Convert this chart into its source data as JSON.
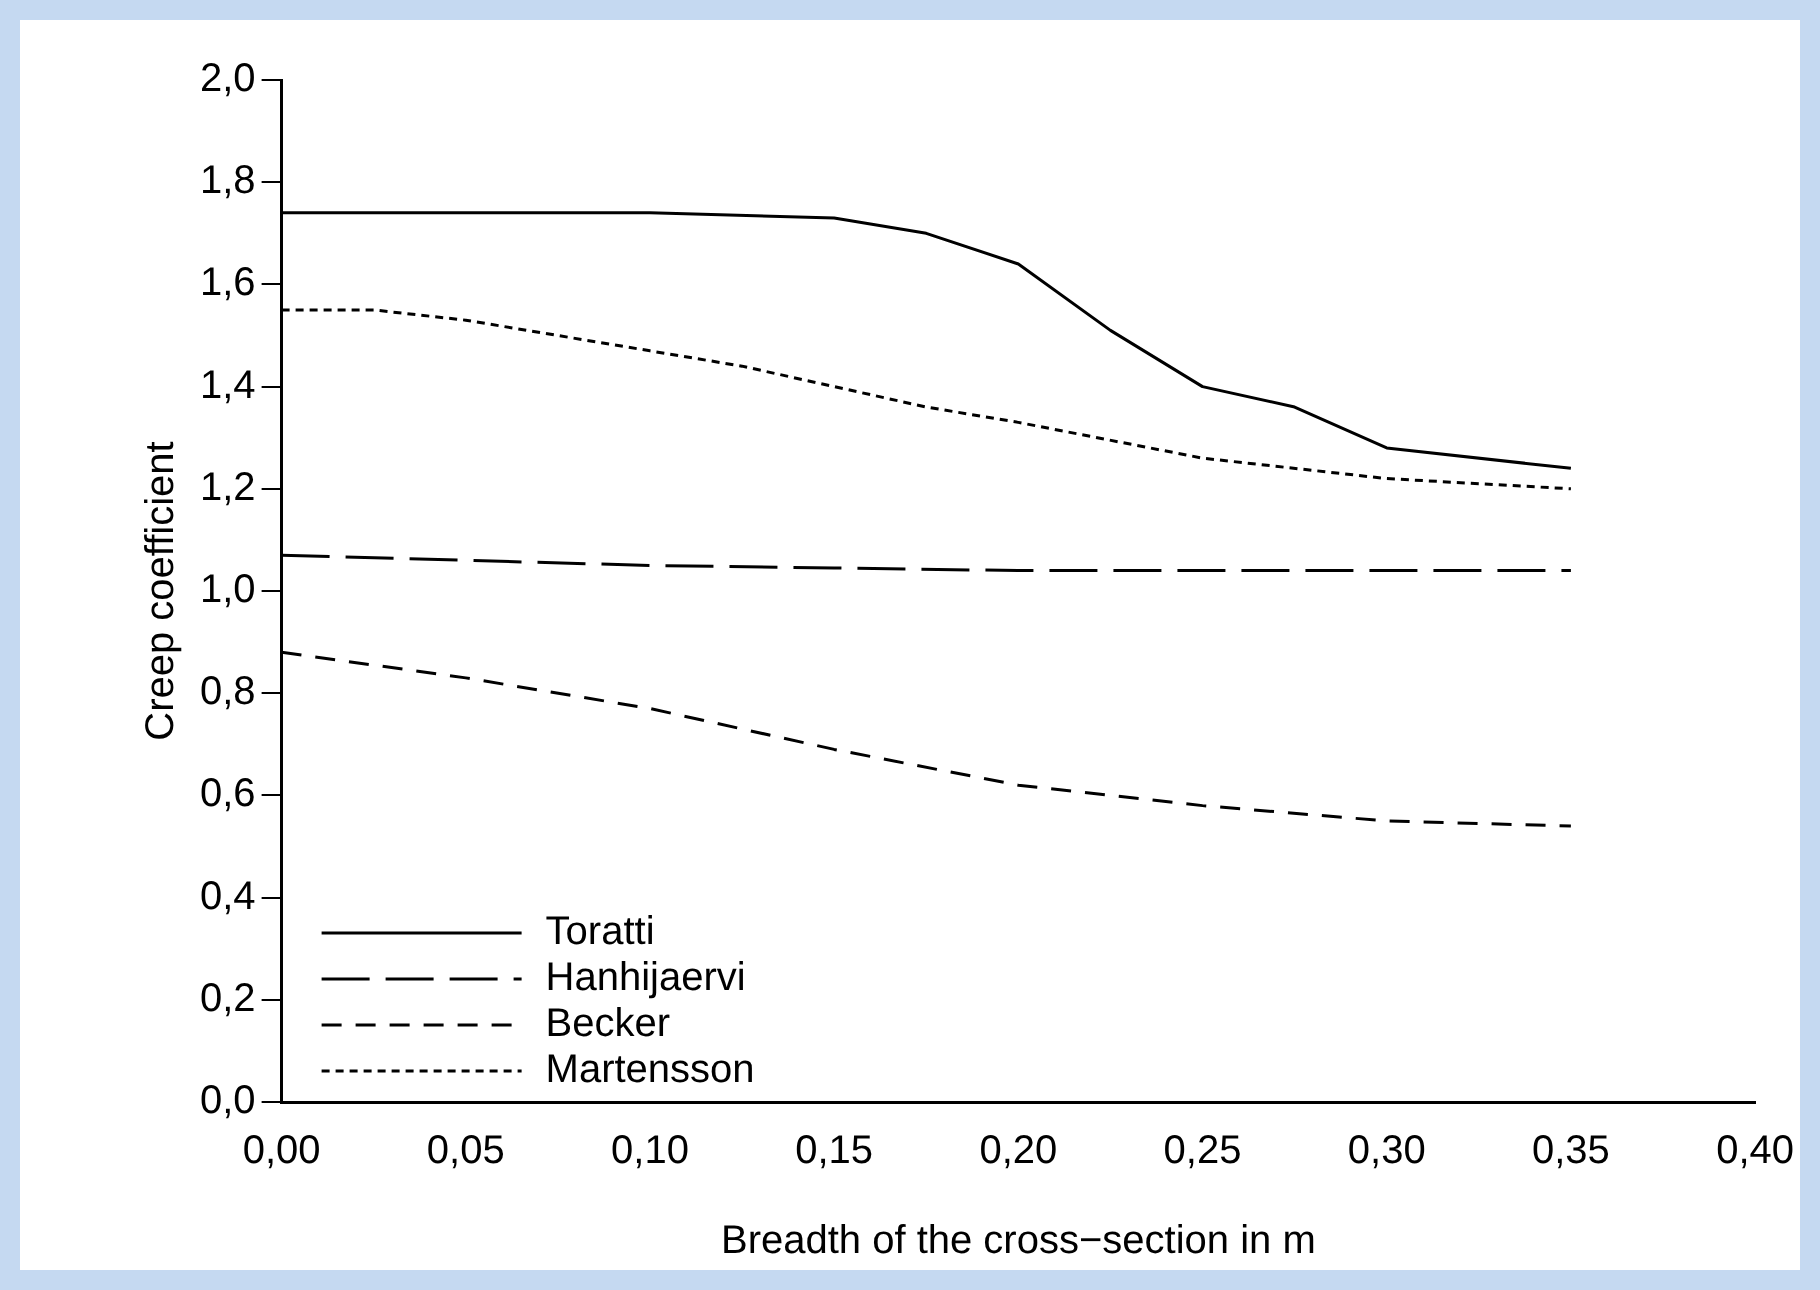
{
  "chart_data": {
    "type": "line",
    "xlabel": "Breadth of the cross−section in m",
    "ylabel": "Creep coefficient",
    "xlim": [
      0,
      0.4
    ],
    "xticks": [
      {
        "value": 0,
        "label": "0,00"
      },
      {
        "value": 0.05,
        "label": "0,05"
      },
      {
        "value": 0.1,
        "label": "0,10"
      },
      {
        "value": 0.15,
        "label": "0,15"
      },
      {
        "value": 0.2,
        "label": "0,20"
      },
      {
        "value": 0.25,
        "label": "0,25"
      },
      {
        "value": 0.3,
        "label": "0,30"
      },
      {
        "value": 0.35,
        "label": "0,35"
      },
      {
        "value": 0.4,
        "label": "0,40"
      }
    ],
    "ylim": [
      0,
      2
    ],
    "yticks": [
      {
        "value": 0,
        "label": "0,0"
      },
      {
        "value": 0.2,
        "label": "0,2"
      },
      {
        "value": 0.4,
        "label": "0,4"
      },
      {
        "value": 0.6,
        "label": "0,6"
      },
      {
        "value": 0.8,
        "label": "0,8"
      },
      {
        "value": 1,
        "label": "1,0"
      },
      {
        "value": 1.2,
        "label": "1,2"
      },
      {
        "value": 1.4,
        "label": "1,4"
      },
      {
        "value": 1.6,
        "label": "1,6"
      },
      {
        "value": 1.8,
        "label": "1,8"
      },
      {
        "value": 2,
        "label": "2,0"
      }
    ],
    "grid": false,
    "legend": "bottom left",
    "marker": "none",
    "series": [
      {
        "name": "Toratti",
        "color": "#000000",
        "line_style": "solid",
        "x": [
          0,
          0.05,
          0.1,
          0.15,
          0.175,
          0.2,
          0.225,
          0.25,
          0.275,
          0.3,
          0.35
        ],
        "values": [
          1.74,
          1.74,
          1.74,
          1.73,
          1.7,
          1.64,
          1.51,
          1.4,
          1.36,
          1.28,
          1.24
        ]
      },
      {
        "name": "Hanhijaervi",
        "color": "#000000",
        "line_style": "longdash",
        "x": [
          0,
          0.05,
          0.1,
          0.15,
          0.2,
          0.25,
          0.3,
          0.35
        ],
        "values": [
          1.07,
          1.06,
          1.05,
          1.045,
          1.04,
          1.04,
          1.04,
          1.04
        ]
      },
      {
        "name": "Becker",
        "color": "#000000",
        "line_style": "dashed",
        "x": [
          0,
          0.05,
          0.1,
          0.15,
          0.2,
          0.25,
          0.3,
          0.35
        ],
        "values": [
          0.88,
          0.83,
          0.77,
          0.69,
          0.62,
          0.58,
          0.55,
          0.54
        ]
      },
      {
        "name": "Martensson",
        "color": "#000000",
        "line_style": "dotted",
        "x": [
          0,
          0.025,
          0.05,
          0.075,
          0.1,
          0.125,
          0.15,
          0.175,
          0.2,
          0.25,
          0.3,
          0.35
        ],
        "values": [
          1.55,
          1.55,
          1.53,
          1.5,
          1.47,
          1.44,
          1.4,
          1.36,
          1.33,
          1.26,
          1.22,
          1.2
        ]
      }
    ]
  }
}
